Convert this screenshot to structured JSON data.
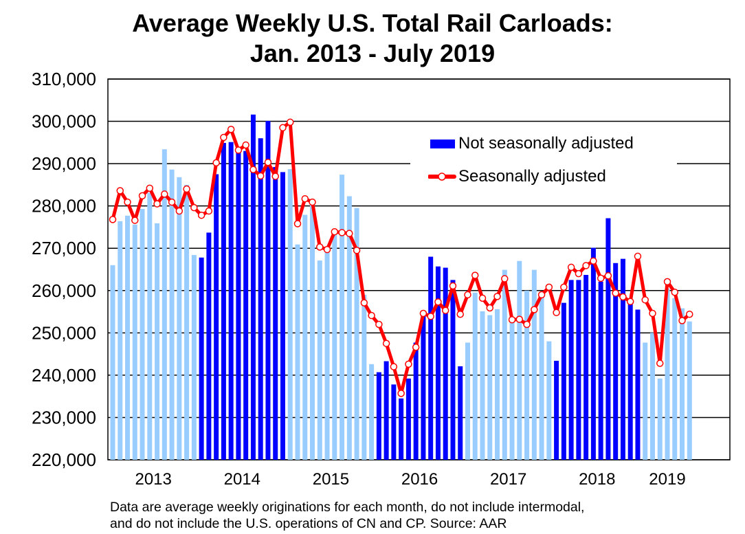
{
  "title_line1": "Average Weekly U.S. Total Rail Carloads:",
  "title_line2": "Jan. 2013 - July 2019",
  "footnote_line1": "Data are average weekly originations for each month, do not include intermodal,",
  "footnote_line2": "and do not include the U.S. operations of CN and CP.  Source: AAR",
  "colors": {
    "bar_light": "#99ccff",
    "bar_dark": "#0000ff",
    "line": "#ff0000",
    "marker_fill": "#ffffff"
  },
  "chart_data": {
    "type": "bar+line",
    "title": "Average Weekly U.S. Total Rail Carloads: Jan. 2013 - July 2019",
    "ylim": [
      220000,
      310000
    ],
    "yticks": [
      "220,000",
      "230,000",
      "240,000",
      "250,000",
      "260,000",
      "270,000",
      "280,000",
      "290,000",
      "300,000",
      "310,000"
    ],
    "years": [
      "2013",
      "2014",
      "2015",
      "2016",
      "2017",
      "2018",
      "2019"
    ],
    "grid": true,
    "legend_placement": "top-right",
    "bar_color_by_year": {
      "2013": "light",
      "2014": "dark",
      "2015": "light",
      "2016": "dark",
      "2017": "light",
      "2018": "dark",
      "2019": "light"
    },
    "series": [
      {
        "name": "Not seasonally adjusted",
        "kind": "bar",
        "values": [
          266000,
          276400,
          277700,
          275600,
          279300,
          283100,
          275900,
          293400,
          288600,
          286800,
          285000,
          268400,
          267800,
          273700,
          287500,
          294900,
          295100,
          293300,
          293000,
          301600,
          296000,
          300100,
          289200,
          288000,
          288700,
          270900,
          277900,
          281300,
          267100,
          269700,
          274000,
          287400,
          282300,
          279500,
          259000,
          242600,
          240700,
          243300,
          237800,
          234500,
          239200,
          247700,
          255100,
          268000,
          265700,
          265400,
          262500,
          242100,
          247700,
          259500,
          255100,
          254200,
          255600,
          264900,
          252900,
          267000,
          260000,
          264900,
          258400,
          248000,
          243400,
          257100,
          262500,
          262500,
          263700,
          270100,
          262100,
          277100,
          266500,
          267500,
          256800,
          255500,
          247700,
          250000,
          239200,
          260500,
          258200,
          255800,
          252700
        ]
      },
      {
        "name": "Seasonally adjusted",
        "kind": "line",
        "values": [
          276800,
          283600,
          280900,
          276600,
          282400,
          284200,
          280500,
          282800,
          280900,
          278800,
          284000,
          279600,
          277800,
          278800,
          290200,
          296200,
          298100,
          293200,
          294400,
          288600,
          287100,
          290300,
          287000,
          298500,
          299800,
          275800,
          281700,
          280900,
          270300,
          269700,
          273900,
          273700,
          273500,
          269500,
          257100,
          254100,
          252000,
          247500,
          242000,
          235700,
          242600,
          246600,
          254600,
          253900,
          257300,
          255300,
          261100,
          254400,
          259000,
          263600,
          258200,
          255900,
          258600,
          262800,
          253100,
          253200,
          252000,
          255500,
          259000,
          260800,
          254800,
          260800,
          265500,
          264000,
          265900,
          267000,
          262900,
          263500,
          259400,
          258500,
          257400,
          268100,
          257800,
          254600,
          242800,
          262100,
          259600,
          252900,
          254400
        ]
      }
    ]
  }
}
